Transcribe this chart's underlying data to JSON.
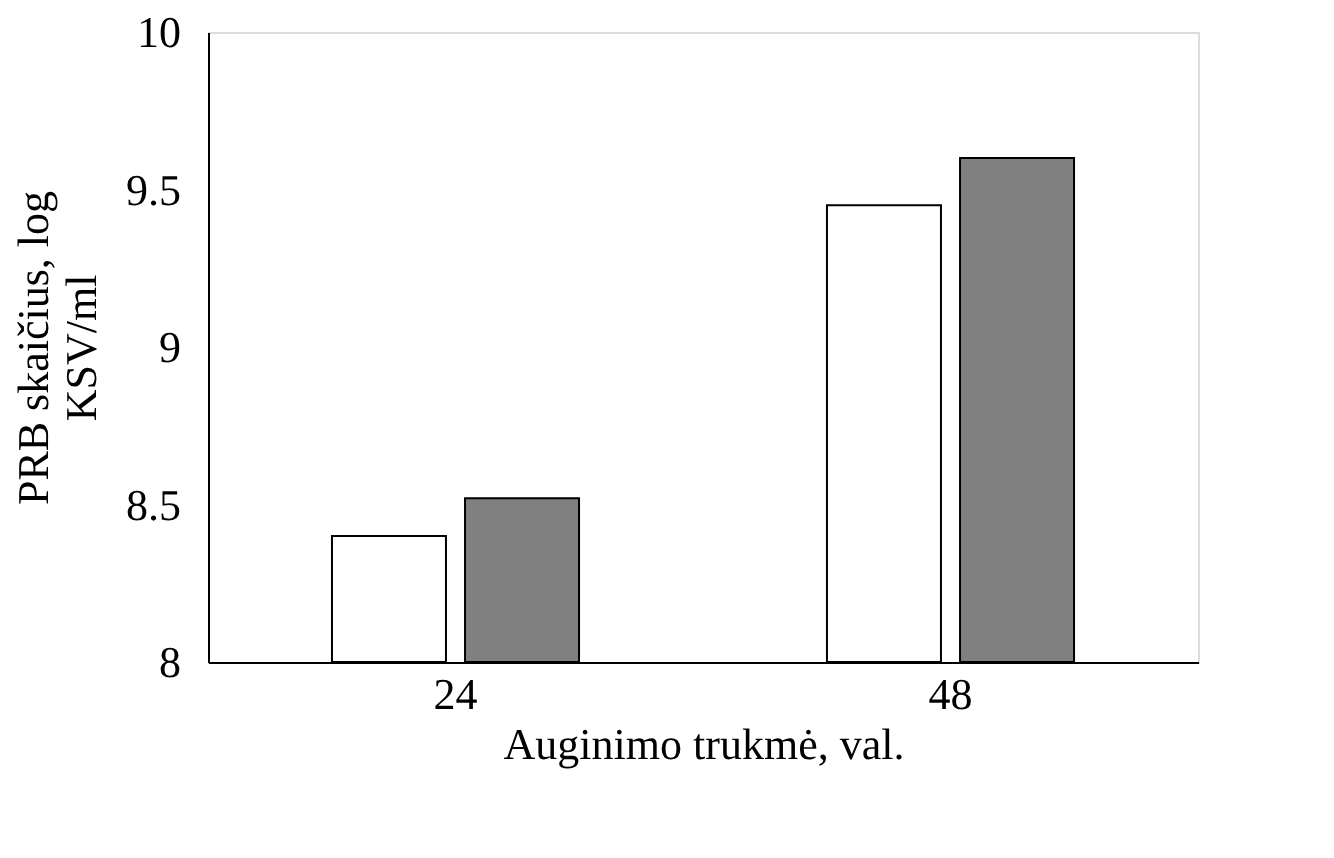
{
  "chart_data": {
    "type": "bar",
    "xlabel": "Auginimo trukmė, val.",
    "ylabel": "PRB skaičius, log KSV/ml",
    "categories": [
      "24",
      "48"
    ],
    "series": [
      {
        "color": "#ffffff",
        "values": [
          8.4,
          9.45
        ]
      },
      {
        "color": "#808080",
        "values": [
          8.52,
          9.6
        ]
      }
    ],
    "ylim": [
      8,
      10
    ],
    "yticks": [
      8,
      8.5,
      9,
      9.5,
      10
    ],
    "grid": false
  }
}
